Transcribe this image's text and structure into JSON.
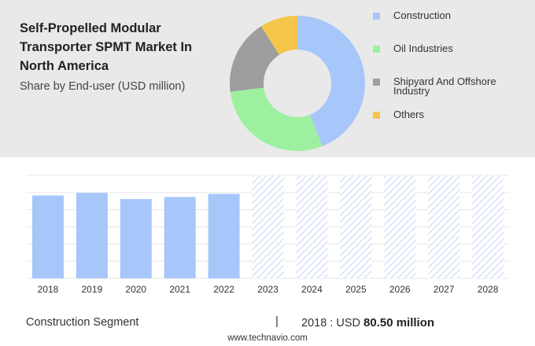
{
  "header": {
    "title": "Self-Propelled Modular Transporter SPMT Market In North America",
    "subtitle": "Share by End-user (USD million)"
  },
  "colors": {
    "construction": "#a7c7fa",
    "oil_industries": "#9df09f",
    "shipyard": "#9e9e9e",
    "others": "#f5c64a",
    "bar": "#a7c7fa",
    "forecast_hatch": "#c9d9f7"
  },
  "legend": [
    {
      "label": "Construction",
      "color": "#a7c7fa"
    },
    {
      "label": "Oil Industries",
      "color": "#9df09f"
    },
    {
      "label": "Shipyard And Offshore Industry",
      "color": "#9e9e9e"
    },
    {
      "label": "Others",
      "color": "#f5c64a"
    }
  ],
  "chart_data": [
    {
      "type": "pie",
      "variant": "donut",
      "categories": [
        "Construction",
        "Oil Industries",
        "Shipyard And Offshore Industry",
        "Others"
      ],
      "values": [
        44,
        29,
        18,
        9
      ],
      "legend_position": "right"
    },
    {
      "type": "bar",
      "categories": [
        "2018",
        "2019",
        "2020",
        "2021",
        "2022",
        "2023",
        "2024",
        "2025",
        "2026",
        "2027",
        "2028"
      ],
      "values": [
        80.5,
        83,
        77,
        79,
        82,
        null,
        null,
        null,
        null,
        null,
        null
      ],
      "forecast_categories": [
        "2023",
        "2024",
        "2025",
        "2026",
        "2027",
        "2028"
      ],
      "forecast_style": "hatched",
      "ylim": [
        0,
        100
      ],
      "grid": true
    }
  ],
  "footer": {
    "segment": "Construction Segment",
    "separator": "|",
    "year_label": "2018 : USD",
    "value": "80.50 million"
  },
  "source": "www.technavio.com"
}
